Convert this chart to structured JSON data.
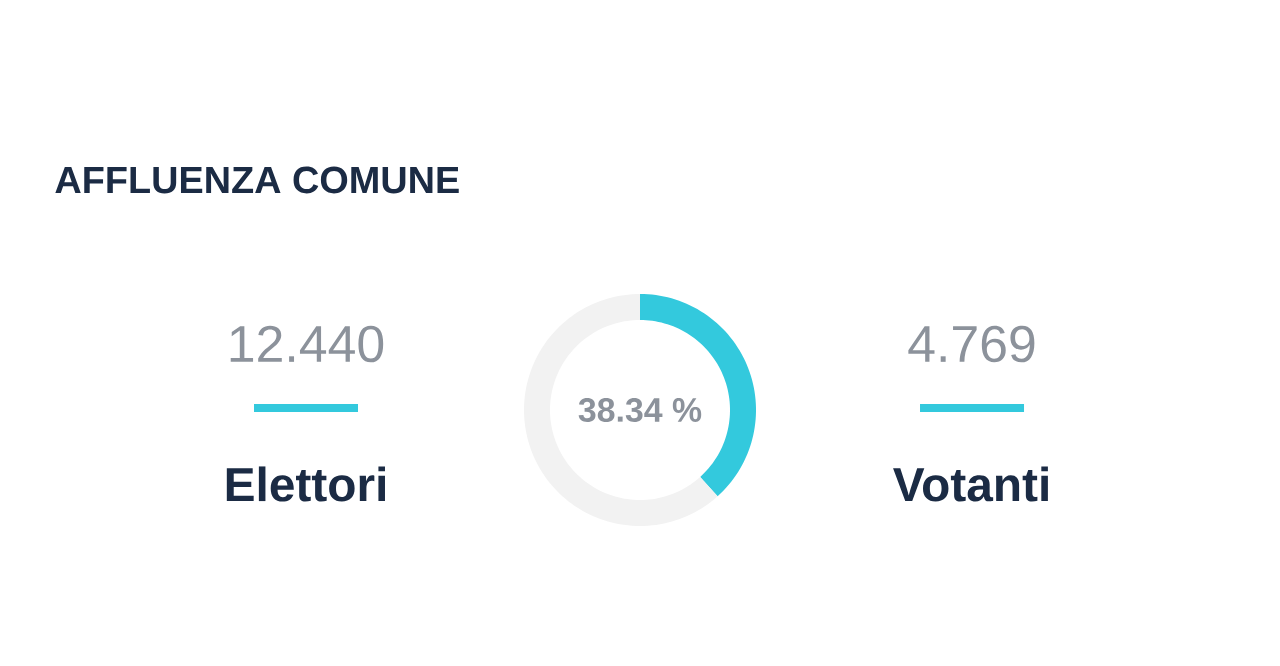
{
  "chart_data": {
    "type": "donut",
    "title": "AFFLUENZA COMUNE",
    "categories": [
      null,
      null
    ],
    "values": [
      38.34,
      61.66
    ],
    "colors": [
      "#33c9dd",
      "#f2f2f2"
    ],
    "annotations": [
      "12.440",
      "Elettori",
      "38.34 %",
      "4.769",
      "Votanti"
    ]
  }
}
